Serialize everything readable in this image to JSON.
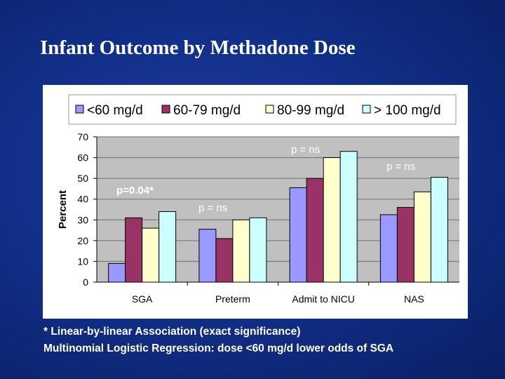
{
  "title": "Infant Outcome by Methadone Dose",
  "footnotes": [
    "* Linear-by-linear Association (exact significance)",
    "Multinomial Logistic Regression: dose <60 mg/d lower odds of SGA"
  ],
  "chart_data": {
    "type": "bar",
    "ylabel": "Percent",
    "ylim": [
      0,
      70
    ],
    "yticks": [
      0,
      10,
      20,
      30,
      40,
      50,
      60,
      70
    ],
    "grid": true,
    "legend_placement": "top",
    "categories": [
      "SGA",
      "Preterm",
      "Admit to NICU",
      "NAS"
    ],
    "series": [
      {
        "name": "<60 mg/d",
        "color": "#9999ff",
        "values": [
          9,
          25.5,
          45.5,
          32.5
        ]
      },
      {
        "name": "60-79 mg/d",
        "color": "#993366",
        "values": [
          31,
          21,
          50,
          36
        ]
      },
      {
        "name": "80-99 mg/d",
        "color": "#ffffcc",
        "values": [
          26,
          30,
          60,
          43.5
        ]
      },
      {
        "name": "> 100 mg/d",
        "color": "#ccffff",
        "values": [
          34,
          31,
          63,
          50.5
        ]
      }
    ],
    "annotations": [
      "p=0.04*",
      "p = ns",
      "p = ns",
      "p = ns"
    ]
  }
}
